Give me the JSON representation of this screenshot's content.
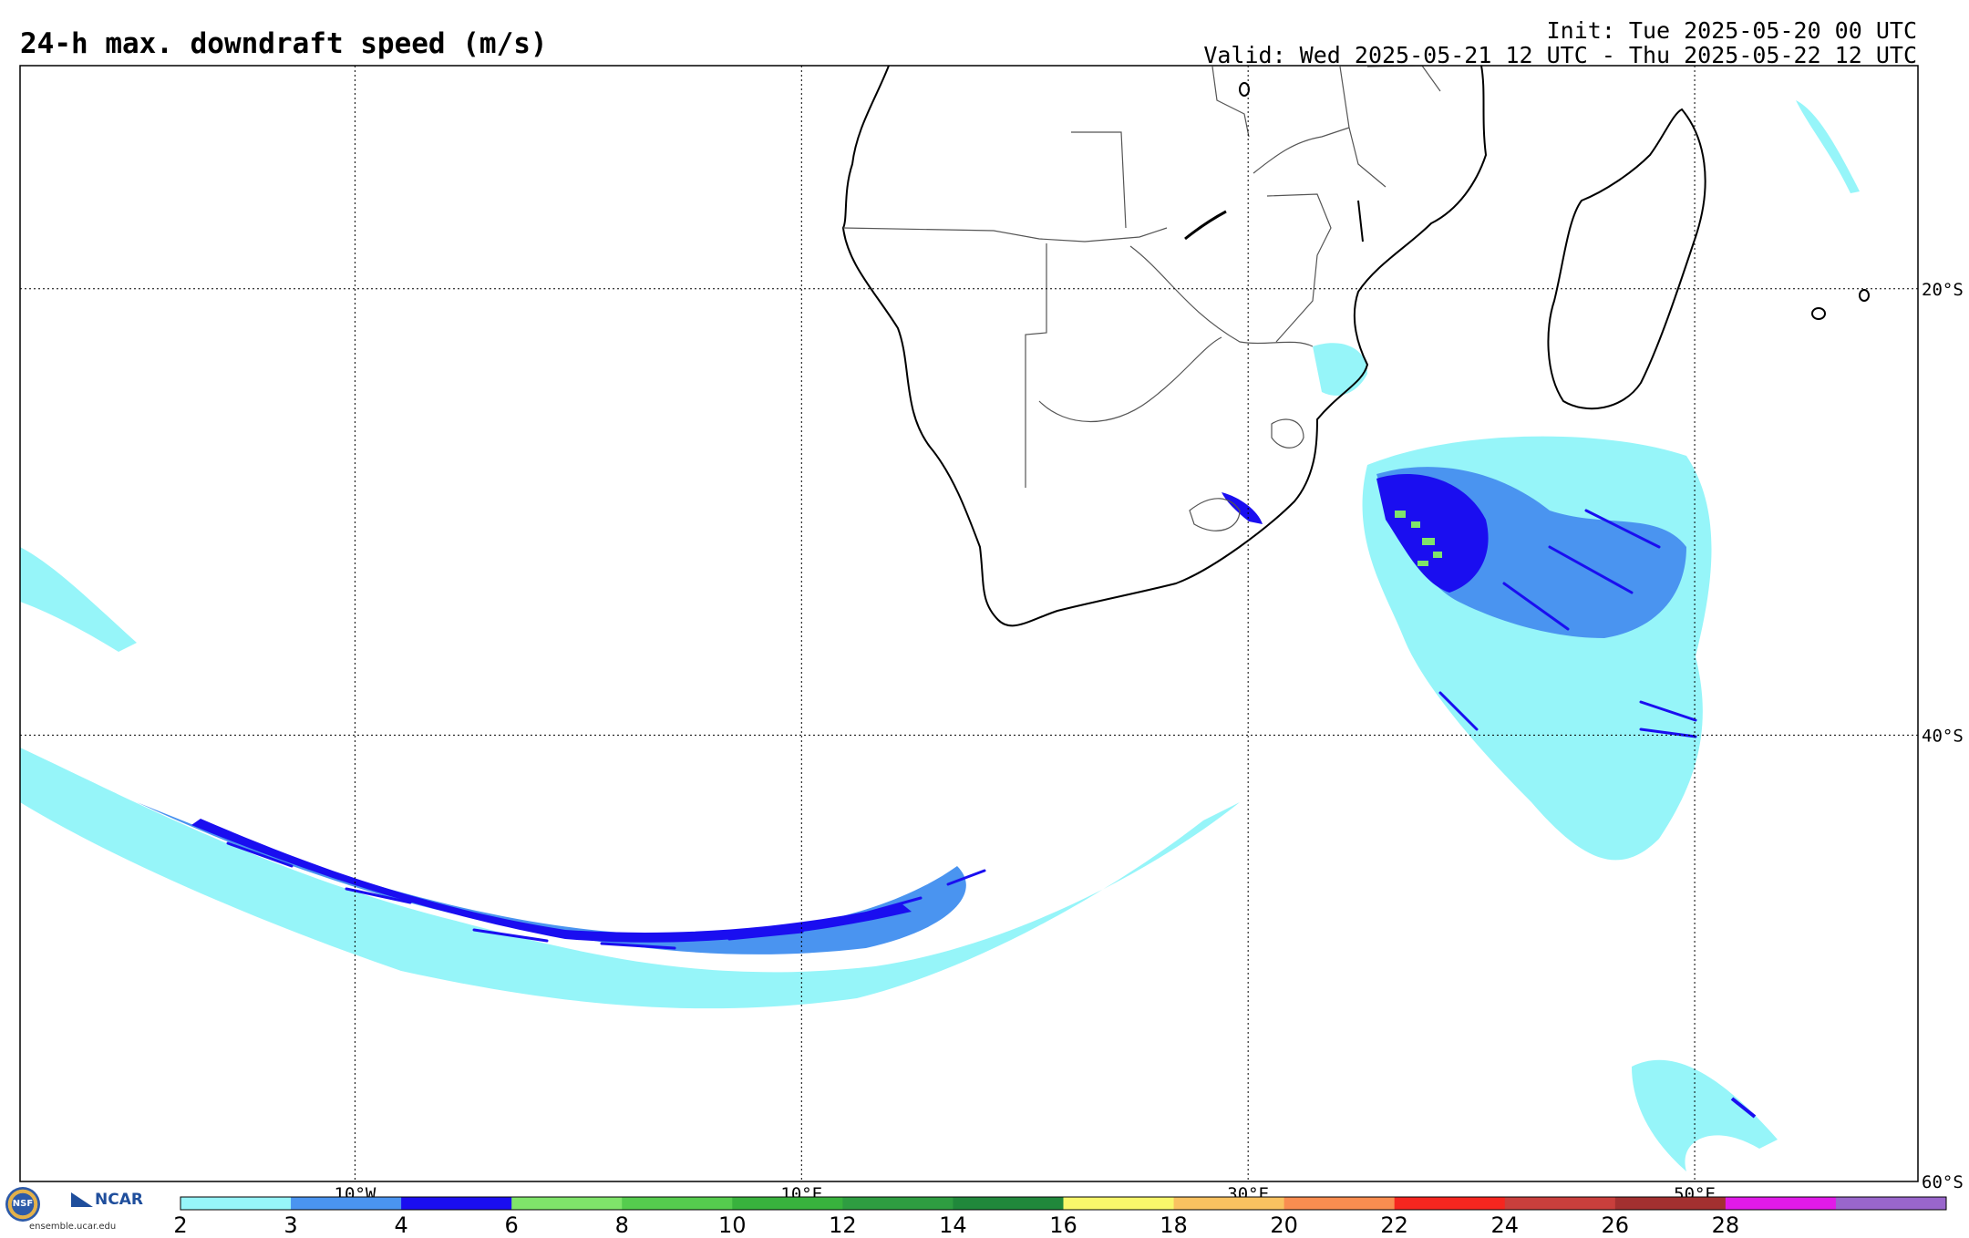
{
  "header": {
    "title": "24-h max. downdraft speed (m/s)",
    "init": "Init: Tue 2025-05-20 00 UTC",
    "valid": "Valid: Wed 2025-05-21 12 UTC - Thu 2025-05-22 12 UTC"
  },
  "map": {
    "lon_range": [
      -25,
      60
    ],
    "lat_range": [
      -60,
      -10
    ],
    "lon_gridlines": [
      -10,
      10,
      30,
      50
    ],
    "lat_gridlines": [
      -20,
      -40
    ],
    "lon_labels": [
      "10°W",
      "10°E",
      "30°E",
      "50°E"
    ],
    "lat_labels": [
      "20°S",
      "40°S",
      "60°S"
    ]
  },
  "colorbar": {
    "ticks": [
      "2",
      "3",
      "4",
      "6",
      "8",
      "10",
      "12",
      "14",
      "16",
      "18",
      "20",
      "22",
      "24",
      "26",
      "28"
    ],
    "colors": [
      "#96f5f9",
      "#4a94f0",
      "#1a0ef0",
      "#7fe46a",
      "#55cc4e",
      "#38b23d",
      "#2e9d41",
      "#20883b",
      "#f8f76b",
      "#f9c260",
      "#f98d50",
      "#f5261f",
      "#c93f3c",
      "#a33030",
      "#e11ae8",
      "#9966cc"
    ]
  },
  "branding": {
    "nsf": "NSF",
    "ncar": "NCAR",
    "site": "ensemble.ucar.edu"
  }
}
